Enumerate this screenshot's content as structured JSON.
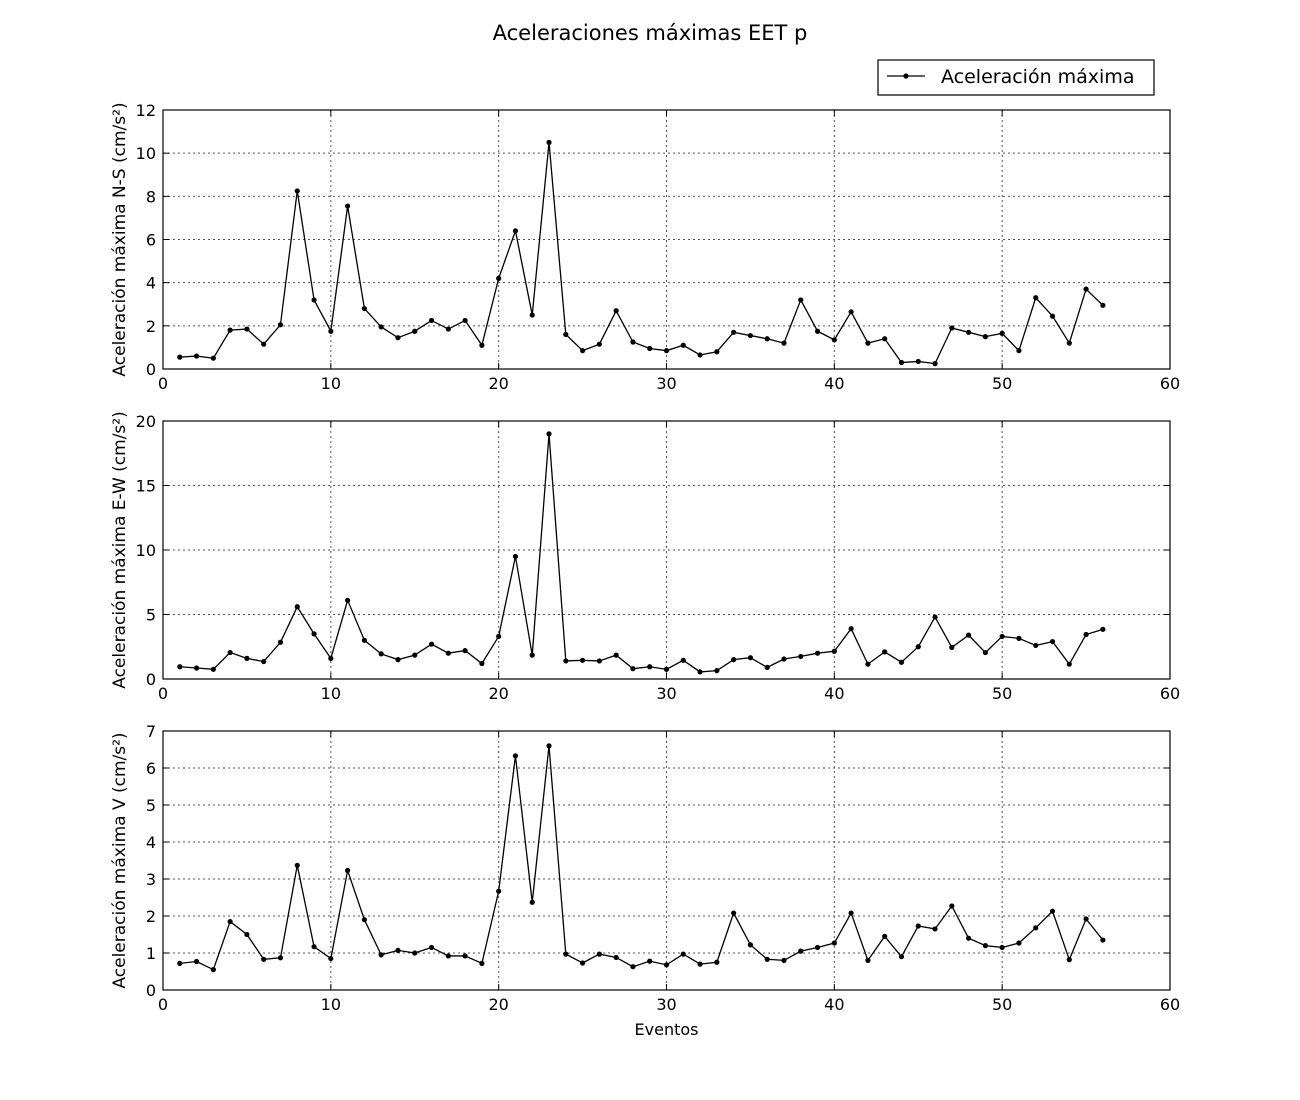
{
  "title": "Aceleraciones máximas EET p",
  "legend": {
    "label": "Aceleración máxima",
    "placement": "top-right"
  },
  "chart_data": [
    {
      "type": "line",
      "ylabel": "Aceleración máxima N-S (cm/s²)",
      "xlabel": "",
      "xlim": [
        0,
        60
      ],
      "ylim": [
        0,
        12
      ],
      "xticks": [
        0,
        10,
        20,
        30,
        40,
        50,
        60
      ],
      "yticks": [
        0,
        2,
        4,
        6,
        8,
        10,
        12
      ],
      "grid": true,
      "series": [
        {
          "name": "Aceleración máxima",
          "x": [
            1,
            2,
            3,
            4,
            5,
            6,
            7,
            8,
            9,
            10,
            11,
            12,
            13,
            14,
            15,
            16,
            17,
            18,
            19,
            20,
            21,
            22,
            23,
            24,
            25,
            26,
            27,
            28,
            29,
            30,
            31,
            32,
            33,
            34,
            35,
            36,
            37,
            38,
            39,
            40,
            41,
            42,
            43,
            44,
            45,
            46,
            47,
            48,
            49,
            50,
            51,
            52,
            53,
            54,
            55,
            56
          ],
          "values": [
            0.55,
            0.6,
            0.5,
            1.8,
            1.85,
            1.15,
            2.05,
            8.25,
            3.2,
            1.75,
            7.55,
            2.8,
            1.95,
            1.45,
            1.75,
            2.25,
            1.85,
            2.25,
            1.1,
            4.2,
            6.4,
            2.5,
            10.5,
            1.6,
            0.85,
            1.15,
            2.7,
            1.25,
            0.95,
            0.85,
            1.1,
            0.65,
            0.8,
            1.7,
            1.55,
            1.4,
            1.2,
            3.2,
            1.75,
            1.35,
            2.65,
            1.2,
            1.4,
            0.3,
            0.35,
            0.25,
            1.9,
            1.7,
            1.5,
            1.65,
            0.85,
            3.3,
            2.45,
            1.2,
            3.7,
            2.95
          ]
        }
      ]
    },
    {
      "type": "line",
      "ylabel": "Aceleración máxima E-W (cm/s²)",
      "xlabel": "",
      "xlim": [
        0,
        60
      ],
      "ylim": [
        0,
        20
      ],
      "xticks": [
        0,
        10,
        20,
        30,
        40,
        50,
        60
      ],
      "yticks": [
        0,
        5,
        10,
        15,
        20
      ],
      "grid": true,
      "series": [
        {
          "name": "Aceleración máxima",
          "x": [
            1,
            2,
            3,
            4,
            5,
            6,
            7,
            8,
            9,
            10,
            11,
            12,
            13,
            14,
            15,
            16,
            17,
            18,
            19,
            20,
            21,
            22,
            23,
            24,
            25,
            26,
            27,
            28,
            29,
            30,
            31,
            32,
            33,
            34,
            35,
            36,
            37,
            38,
            39,
            40,
            41,
            42,
            43,
            44,
            45,
            46,
            47,
            48,
            49,
            50,
            51,
            52,
            53,
            54,
            55,
            56
          ],
          "values": [
            0.95,
            0.85,
            0.75,
            2.05,
            1.6,
            1.35,
            2.85,
            5.6,
            3.5,
            1.6,
            6.1,
            3.0,
            1.95,
            1.5,
            1.85,
            2.7,
            2.0,
            2.2,
            1.2,
            3.3,
            9.5,
            1.85,
            19.0,
            1.4,
            1.45,
            1.4,
            1.85,
            0.8,
            0.95,
            0.75,
            1.45,
            0.55,
            0.65,
            1.5,
            1.65,
            0.9,
            1.55,
            1.75,
            2.0,
            2.15,
            3.9,
            1.15,
            2.1,
            1.3,
            2.5,
            4.8,
            2.45,
            3.4,
            2.05,
            3.3,
            3.15,
            2.6,
            2.9,
            1.15,
            3.45,
            3.85
          ]
        }
      ]
    },
    {
      "type": "line",
      "ylabel": "Aceleración máxima V (cm/s²)",
      "xlabel": "Eventos",
      "xlim": [
        0,
        60
      ],
      "ylim": [
        0,
        7
      ],
      "xticks": [
        0,
        10,
        20,
        30,
        40,
        50,
        60
      ],
      "yticks": [
        0,
        1,
        2,
        3,
        4,
        5,
        6,
        7
      ],
      "grid": true,
      "series": [
        {
          "name": "Aceleración máxima",
          "x": [
            1,
            2,
            3,
            4,
            5,
            6,
            7,
            8,
            9,
            10,
            11,
            12,
            13,
            14,
            15,
            16,
            17,
            18,
            19,
            20,
            21,
            22,
            23,
            24,
            25,
            26,
            27,
            28,
            29,
            30,
            31,
            32,
            33,
            34,
            35,
            36,
            37,
            38,
            39,
            40,
            41,
            42,
            43,
            44,
            45,
            46,
            47,
            48,
            49,
            50,
            51,
            52,
            53,
            54,
            55,
            56
          ],
          "values": [
            0.72,
            0.77,
            0.55,
            1.85,
            1.5,
            0.83,
            0.87,
            3.37,
            1.17,
            0.85,
            3.23,
            1.9,
            0.95,
            1.07,
            1.0,
            1.15,
            0.92,
            0.92,
            0.72,
            2.67,
            6.33,
            2.37,
            6.6,
            0.97,
            0.73,
            0.97,
            0.88,
            0.63,
            0.78,
            0.68,
            0.97,
            0.7,
            0.75,
            2.08,
            1.22,
            0.83,
            0.8,
            1.05,
            1.15,
            1.27,
            2.08,
            0.8,
            1.45,
            0.9,
            1.73,
            1.65,
            2.27,
            1.4,
            1.2,
            1.15,
            1.27,
            1.68,
            2.13,
            0.82,
            1.92,
            1.35
          ]
        }
      ]
    }
  ]
}
